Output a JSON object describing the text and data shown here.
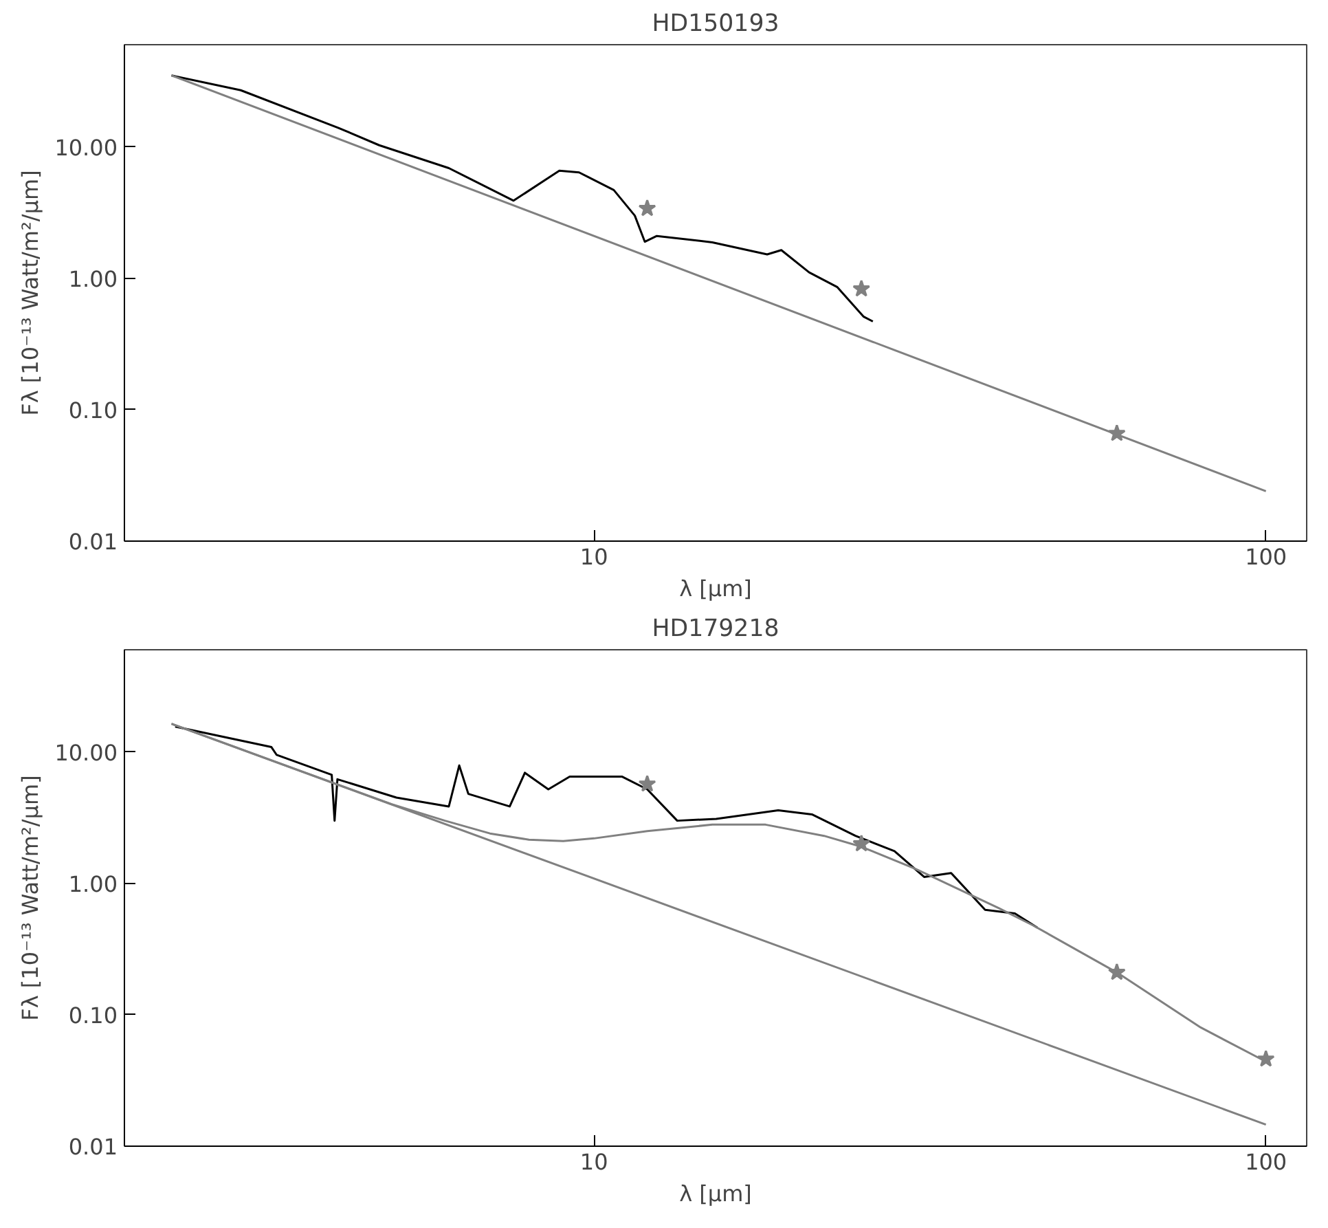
{
  "chart_data": [
    {
      "type": "line",
      "title": "HD150193",
      "xlabel": "λ [µm]",
      "ylabel": "Fλ [10⁻¹³ Watt/m²/µm]",
      "log": "xy",
      "xlim": [
        2,
        115
      ],
      "ylim": [
        0.01,
        60
      ],
      "xticks": [
        10,
        100
      ],
      "yticks": [
        {
          "value": 0.01,
          "label": "0.01"
        },
        {
          "value": 0.1,
          "label": "0.10"
        },
        {
          "value": 1,
          "label": "1.00"
        },
        {
          "value": 10,
          "label": "10.00"
        }
      ],
      "grid": false,
      "series": [
        {
          "color": "#000000",
          "x": [
            2.35,
            2.98,
            4.16,
            4.79,
            6.08,
            7.59,
            8.88,
            9.5,
            10.7,
            11.5,
            11.9,
            12.4,
            15.0,
            18.1,
            19.0,
            20.9,
            23.0,
            25.2,
            26
          ],
          "values": [
            35,
            27,
            14,
            10.3,
            6.9,
            3.9,
            6.6,
            6.4,
            4.7,
            3.0,
            1.9,
            2.1,
            1.88,
            1.52,
            1.64,
            1.11,
            0.86,
            0.51,
            0.47
          ]
        },
        {
          "color": "#808080",
          "x": [
            2.35,
            100
          ],
          "values": [
            35,
            0.024
          ]
        },
        {
          "type": "scatter",
          "color": "#808080",
          "marker": "star",
          "x": [
            12,
            25,
            60
          ],
          "values": [
            3.4,
            0.83,
            0.066
          ]
        }
      ]
    },
    {
      "type": "line",
      "title": "HD179218",
      "xlabel": "λ [µm]",
      "ylabel": "Fλ [10⁻¹³ Watt/m²/µm]",
      "log": "xy",
      "xlim": [
        2,
        115
      ],
      "ylim": [
        0.01,
        60
      ],
      "xticks": [
        10,
        100
      ],
      "yticks": [
        {
          "value": 0.01,
          "label": "0.01"
        },
        {
          "value": 0.1,
          "label": "0.10"
        },
        {
          "value": 1,
          "label": "1.00"
        },
        {
          "value": 10,
          "label": "10.00"
        }
      ],
      "grid": false,
      "series": [
        {
          "color": "#000000",
          "x": [
            2.38,
            3.31,
            3.37,
            4.07,
            4.11,
            4.15,
            5.08,
            6.08,
            6.3,
            6.5,
            7.49,
            7.89,
            8.55,
            9.2,
            11.0,
            12.0,
            13.3,
            15.2,
            18.8,
            21.1,
            24.5,
            28.0,
            31,
            34,
            38.2,
            42.3,
            45.7
          ],
          "values": [
            15.6,
            10.9,
            9.5,
            6.7,
            3.0,
            6.2,
            4.5,
            3.85,
            7.9,
            4.8,
            3.85,
            6.95,
            5.2,
            6.5,
            6.5,
            5.2,
            3.0,
            3.1,
            3.6,
            3.35,
            2.3,
            1.76,
            1.12,
            1.2,
            0.63,
            0.59,
            0.46
          ]
        },
        {
          "color": "#808080",
          "x": [
            2.35,
            100
          ],
          "values": [
            16.4,
            0.0146
          ]
        },
        {
          "color": "#808080",
          "x": [
            2.35,
            5,
            6,
            7,
            8,
            9,
            10,
            12,
            15,
            18,
            22,
            25,
            30,
            40,
            45,
            60,
            80,
            100
          ],
          "values": [
            16.4,
            4.0,
            3.0,
            2.4,
            2.15,
            2.1,
            2.2,
            2.5,
            2.8,
            2.8,
            2.3,
            1.9,
            1.3,
            0.65,
            0.48,
            0.21,
            0.08,
            0.044
          ]
        },
        {
          "type": "scatter",
          "color": "#808080",
          "marker": "star",
          "x": [
            12,
            25,
            60,
            100
          ],
          "values": [
            5.7,
            2.0,
            0.21,
            0.046
          ]
        }
      ]
    }
  ]
}
